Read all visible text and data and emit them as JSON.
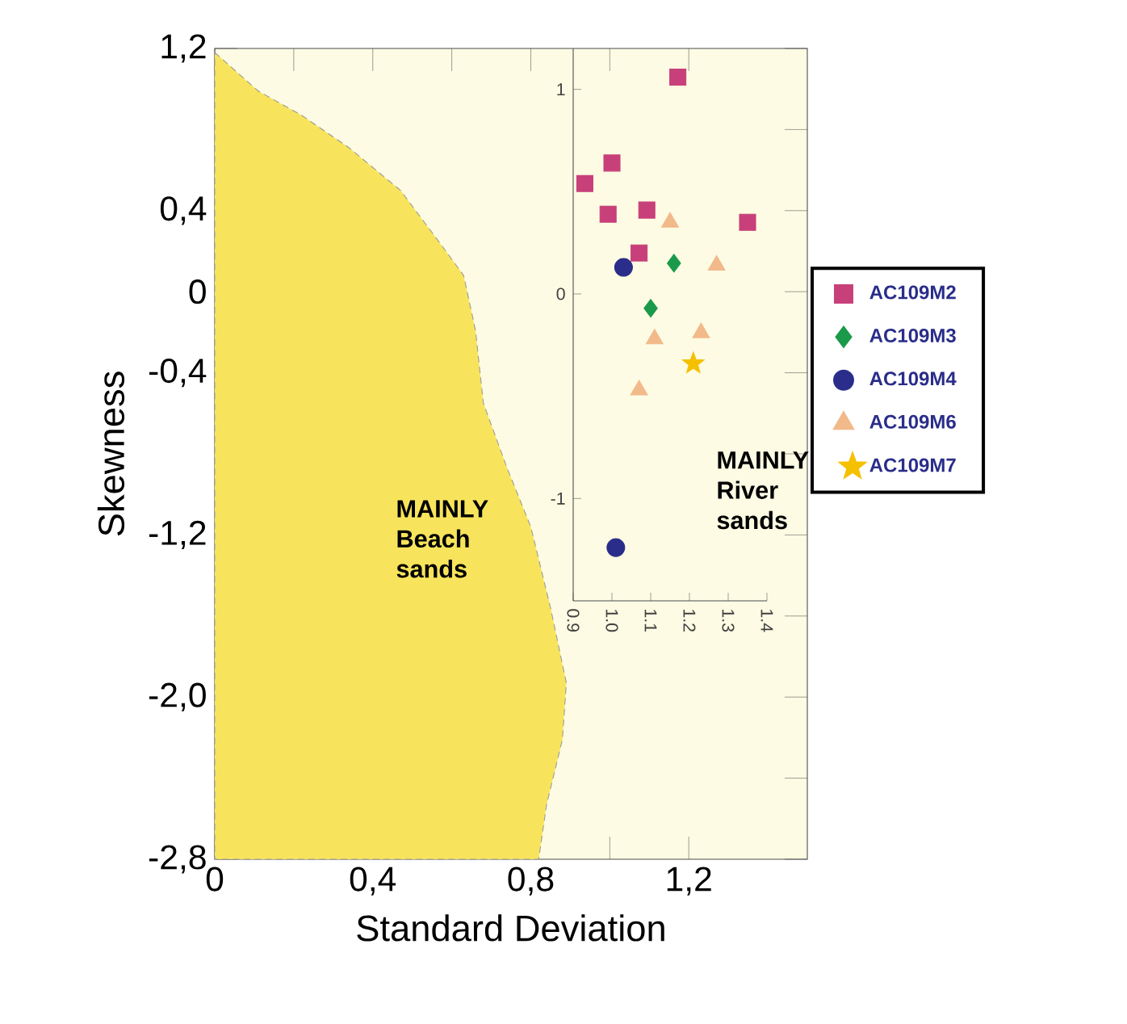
{
  "chart_data": [
    {
      "type": "area",
      "xlabel": "Standard Deviation",
      "ylabel": "Skewness",
      "xlim": [
        0,
        1.5
      ],
      "ylim": [
        -2.8,
        1.2
      ],
      "xticks": [
        0,
        {
          "value": 0.2,
          "label": null
        },
        {
          "value": 0.4,
          "label": "0,4"
        },
        {
          "value": 0.6,
          "label": null
        },
        {
          "value": 0.8,
          "label": "0,8"
        },
        {
          "value": 1.0,
          "label": null
        },
        {
          "value": 1.2,
          "label": "1,2"
        }
      ],
      "yticks": [
        {
          "value": 1.2,
          "label": "1,2"
        },
        {
          "value": 0.8,
          "label": null
        },
        {
          "value": 0.4,
          "label": "0,4"
        },
        0,
        {
          "value": -0.4,
          "label": "-0,4"
        },
        {
          "value": -0.8,
          "label": null
        },
        {
          "value": -1.2,
          "label": "-1,2"
        },
        {
          "value": -1.6,
          "label": null
        },
        {
          "value": -2.0,
          "label": "-2,0"
        },
        {
          "value": -2.4,
          "label": null
        },
        {
          "value": -2.8,
          "label": "-2,8"
        }
      ],
      "series": [
        {
          "color": "#f8e45c",
          "x": [
            0,
            0.11,
            0.22,
            0.34,
            0.47,
            0.57,
            0.63,
            0.66,
            0.68,
            0.74,
            0.8,
            0.85,
            0.89,
            0.88,
            0.84,
            0.82,
            0
          ],
          "values": [
            1.18,
            0.99,
            0.87,
            0.71,
            0.5,
            0.24,
            0.08,
            -0.19,
            -0.55,
            -0.87,
            -1.16,
            -1.56,
            -1.93,
            -2.21,
            -2.53,
            -2.8,
            -2.8
          ]
        }
      ],
      "annotations": [
        "MAINLY Beach sands"
      ]
    },
    {
      "type": "scatter",
      "xlim": [
        0.9,
        1.4
      ],
      "ylim": [
        -1.5,
        1.2
      ],
      "xticks": [
        0.9,
        {
          "value": 1.0,
          "label": "1.0"
        },
        1.1,
        1.2,
        1.3,
        1.4
      ],
      "yticks": [
        -1,
        0,
        1
      ],
      "legend": "right",
      "series": [
        {
          "name": "AC109M2",
          "color": "#c8407a",
          "marker": "square",
          "x": [
            1.17,
            1.0,
            0.93,
            0.99,
            1.09,
            1.07,
            1.35
          ],
          "values": [
            1.06,
            0.64,
            0.54,
            0.39,
            0.41,
            0.2,
            0.35
          ]
        },
        {
          "name": "AC109M3",
          "color": "#1a9a4a",
          "marker": "diamond",
          "x": [
            1.16,
            1.1
          ],
          "values": [
            0.15,
            -0.07
          ]
        },
        {
          "name": "AC109M4",
          "color": "#2a2d8a",
          "marker": "circle",
          "x": [
            1.03,
            1.01
          ],
          "values": [
            0.13,
            -1.24
          ]
        },
        {
          "name": "AC109M6",
          "color": "#f2b98a",
          "marker": "triangle",
          "x": [
            1.15,
            1.27,
            1.23,
            1.11,
            1.07
          ],
          "values": [
            0.35,
            0.14,
            -0.19,
            -0.22,
            -0.47
          ]
        },
        {
          "name": "AC109M7",
          "color": "#f5c000",
          "marker": "star",
          "x": [
            1.21
          ],
          "values": [
            -0.34
          ]
        }
      ],
      "annotations": [
        "MAINLY River sands"
      ]
    }
  ]
}
